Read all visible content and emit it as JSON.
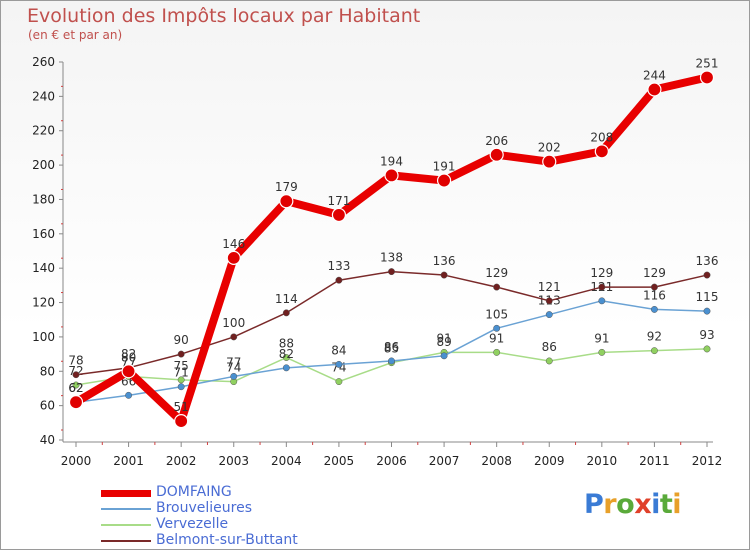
{
  "title": "Evolution des Impôts locaux par Habitant",
  "subtitle": "(en € et par an)",
  "logo": {
    "text": "Proxiti",
    "letter_colors": [
      "#3a7bd5",
      "#e8a02a",
      "#5aaa3a",
      "#e0402a",
      "#3a7bd5",
      "#5aaa3a",
      "#e8a02a"
    ]
  },
  "chart_data": {
    "type": "line",
    "title": "Evolution des Impôts locaux par Habitant",
    "subtitle": "(en € et par an)",
    "xlabel": "",
    "ylabel": "",
    "x": [
      "2000",
      "2001",
      "2002",
      "2003",
      "2004",
      "2005",
      "2006",
      "2007",
      "2008",
      "2009",
      "2010",
      "2011",
      "2012"
    ],
    "ylim": [
      40,
      260
    ],
    "yticks": [
      40,
      60,
      80,
      100,
      120,
      140,
      160,
      180,
      200,
      220,
      240,
      260
    ],
    "grid": false,
    "legend_position": "bottom-left",
    "series": [
      {
        "name": "Vervezelle",
        "color": "#90d060",
        "line_color": "#a8dc88",
        "values": [
          72,
          77,
          75,
          74,
          88,
          74,
          85,
          91,
          91,
          86,
          91,
          92,
          93
        ]
      },
      {
        "name": "Brouvelieures",
        "color": "#4a90d0",
        "line_color": "#6aa2d4",
        "values": [
          62,
          66,
          71,
          77,
          82,
          84,
          86,
          89,
          105,
          113,
          121,
          116,
          115
        ]
      },
      {
        "name": "Belmont-sur-Buttant",
        "color": "#702020",
        "line_color": "#7a2a2a",
        "values": [
          78,
          82,
          90,
          100,
          114,
          133,
          138,
          136,
          129,
          121,
          129,
          129,
          136
        ]
      },
      {
        "name": "DOMFAING",
        "color": "#e00000",
        "line_color": "#e80000",
        "values": [
          62,
          80,
          51,
          146,
          179,
          171,
          194,
          191,
          206,
          202,
          208,
          244,
          251
        ]
      }
    ],
    "legend_order": [
      "DOMFAING",
      "Brouvelieures",
      "Vervezelle",
      "Belmont-sur-Buttant"
    ]
  }
}
